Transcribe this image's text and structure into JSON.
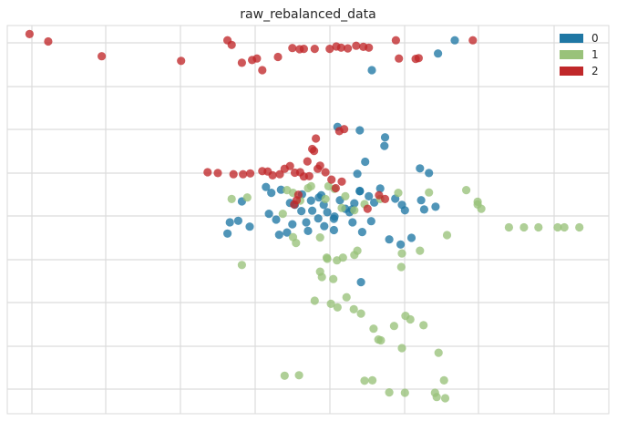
{
  "chart_data": {
    "type": "scatter",
    "title": "raw_rebalanced_data",
    "xlabel": "",
    "ylabel": "",
    "xlim": [
      0,
      100
    ],
    "ylim": [
      0,
      100
    ],
    "grid": true,
    "legend_position": "top-right",
    "series": [
      {
        "name": "0",
        "color": "#1f77a4",
        "points": [
          [
            74.4,
            96.2
          ],
          [
            71.6,
            92.8
          ],
          [
            60.6,
            88.5
          ],
          [
            54.9,
            73.9
          ],
          [
            58.6,
            73.0
          ],
          [
            62.8,
            71.2
          ],
          [
            62.7,
            69.0
          ],
          [
            70.1,
            62.0
          ],
          [
            68.6,
            63.2
          ],
          [
            59.5,
            64.9
          ],
          [
            58.2,
            61.8
          ],
          [
            52.2,
            56.3
          ],
          [
            49.0,
            56.5
          ],
          [
            48.9,
            52.2
          ],
          [
            47.0,
            54.3
          ],
          [
            43.0,
            58.4
          ],
          [
            45.5,
            57.7
          ],
          [
            39.0,
            54.7
          ],
          [
            38.4,
            49.7
          ],
          [
            40.3,
            48.2
          ],
          [
            36.6,
            46.4
          ],
          [
            37.0,
            49.3
          ],
          [
            43.9,
            56.9
          ],
          [
            43.5,
            51.5
          ],
          [
            44.7,
            50.0
          ],
          [
            47.4,
            48.8
          ],
          [
            47.8,
            53.8
          ],
          [
            50.5,
            54.9
          ],
          [
            50.7,
            52.3
          ],
          [
            51.8,
            55.7
          ],
          [
            52.6,
            53.8
          ],
          [
            53.2,
            51.9
          ],
          [
            54.4,
            50.8
          ],
          [
            55.3,
            55.0
          ],
          [
            56.2,
            52.8
          ],
          [
            57.7,
            54.2
          ],
          [
            58.6,
            57.3
          ],
          [
            60.1,
            56.0
          ],
          [
            61.0,
            54.4
          ],
          [
            62.0,
            58.0
          ],
          [
            64.5,
            55.4
          ],
          [
            65.6,
            53.8
          ],
          [
            58.6,
            57.4
          ],
          [
            56.9,
            51.9
          ],
          [
            54.3,
            50.2
          ],
          [
            52.7,
            48.3
          ],
          [
            51.7,
            50.3
          ],
          [
            49.7,
            49.3
          ],
          [
            46.5,
            46.7
          ],
          [
            45.2,
            46.1
          ],
          [
            50.0,
            47.1
          ],
          [
            57.4,
            49.3
          ],
          [
            59.0,
            46.8
          ],
          [
            63.5,
            44.9
          ],
          [
            65.4,
            43.6
          ],
          [
            67.2,
            45.3
          ],
          [
            69.3,
            52.6
          ],
          [
            71.2,
            53.3
          ],
          [
            58.8,
            33.9
          ],
          [
            54.3,
            47.3
          ],
          [
            60.5,
            49.6
          ],
          [
            66.1,
            52.4
          ],
          [
            68.8,
            55.0
          ],
          [
            57.3,
            52.6
          ]
        ]
      },
      {
        "name": "1",
        "color": "#99c27a",
        "points": [
          [
            62.0,
            55.3
          ],
          [
            65.0,
            56.9
          ],
          [
            70.1,
            57.0
          ],
          [
            76.3,
            57.6
          ],
          [
            78.2,
            54.6
          ],
          [
            73.1,
            46.0
          ],
          [
            57.7,
            52.4
          ],
          [
            59.4,
            54.0
          ],
          [
            52.9,
            55.3
          ],
          [
            50.0,
            58.1
          ],
          [
            47.5,
            56.9
          ],
          [
            46.5,
            57.6
          ],
          [
            50.5,
            58.6
          ],
          [
            54.4,
            57.9
          ],
          [
            56.2,
            56.0
          ],
          [
            55.6,
            53.0
          ],
          [
            53.4,
            58.6
          ],
          [
            48.7,
            54.9
          ],
          [
            39.9,
            55.7
          ],
          [
            37.3,
            55.3
          ],
          [
            45.8,
            51.5
          ],
          [
            47.5,
            45.5
          ],
          [
            48.0,
            44.0
          ],
          [
            52.0,
            45.4
          ],
          [
            53.1,
            40.2
          ],
          [
            53.2,
            39.9
          ],
          [
            54.8,
            39.5
          ],
          [
            55.8,
            40.2
          ],
          [
            57.7,
            40.9
          ],
          [
            52.0,
            36.6
          ],
          [
            56.4,
            30.0
          ],
          [
            65.6,
            41.3
          ],
          [
            65.5,
            37.8
          ],
          [
            58.2,
            42.0
          ],
          [
            68.6,
            42.0
          ],
          [
            39.0,
            38.3
          ],
          [
            51.1,
            29.1
          ],
          [
            53.8,
            28.3
          ],
          [
            54.9,
            27.4
          ],
          [
            57.6,
            26.9
          ],
          [
            58.8,
            25.8
          ],
          [
            60.9,
            21.9
          ],
          [
            61.7,
            19.1
          ],
          [
            62.1,
            18.9
          ],
          [
            64.3,
            22.6
          ],
          [
            66.2,
            25.2
          ],
          [
            67.0,
            24.3
          ],
          [
            69.2,
            22.8
          ],
          [
            71.7,
            15.7
          ],
          [
            65.6,
            16.9
          ],
          [
            83.4,
            48.0
          ],
          [
            85.9,
            48.0
          ],
          [
            88.3,
            48.0
          ],
          [
            91.5,
            48.0
          ],
          [
            92.6,
            48.0
          ],
          [
            95.1,
            48.0
          ],
          [
            78.2,
            53.9
          ],
          [
            78.8,
            52.8
          ],
          [
            48.5,
            9.9
          ],
          [
            46.1,
            9.8
          ],
          [
            71.4,
            4.3
          ],
          [
            72.8,
            4.0
          ],
          [
            66.1,
            5.4
          ],
          [
            63.5,
            5.5
          ],
          [
            60.7,
            8.6
          ],
          [
            59.4,
            8.5
          ],
          [
            72.6,
            8.6
          ],
          [
            71.1,
            5.4
          ],
          [
            52.3,
            35.2
          ],
          [
            54.2,
            34.7
          ]
        ]
      },
      {
        "name": "2",
        "color": "#c0282a",
        "points": [
          [
            3.7,
            97.8
          ],
          [
            6.8,
            95.9
          ],
          [
            15.7,
            92.1
          ],
          [
            28.9,
            90.9
          ],
          [
            36.6,
            96.2
          ],
          [
            37.3,
            95.0
          ],
          [
            39.0,
            90.4
          ],
          [
            40.7,
            91.1
          ],
          [
            41.5,
            91.5
          ],
          [
            42.4,
            88.5
          ],
          [
            45.0,
            91.9
          ],
          [
            47.4,
            94.2
          ],
          [
            48.6,
            93.9
          ],
          [
            49.3,
            94.0
          ],
          [
            51.1,
            94.0
          ],
          [
            53.6,
            94.0
          ],
          [
            54.7,
            94.6
          ],
          [
            55.5,
            94.3
          ],
          [
            56.6,
            94.1
          ],
          [
            58.0,
            94.8
          ],
          [
            59.2,
            94.5
          ],
          [
            60.1,
            94.3
          ],
          [
            64.6,
            96.2
          ],
          [
            65.1,
            91.5
          ],
          [
            67.9,
            91.4
          ],
          [
            68.4,
            91.6
          ],
          [
            77.4,
            96.2
          ],
          [
            33.3,
            62.2
          ],
          [
            35.0,
            62.0
          ],
          [
            37.6,
            61.7
          ],
          [
            39.2,
            61.7
          ],
          [
            40.4,
            61.9
          ],
          [
            42.4,
            62.5
          ],
          [
            43.3,
            62.4
          ],
          [
            44.1,
            61.4
          ],
          [
            45.3,
            61.7
          ],
          [
            46.1,
            63.1
          ],
          [
            47.0,
            63.8
          ],
          [
            47.8,
            62.1
          ],
          [
            48.7,
            62.2
          ],
          [
            49.3,
            61.1
          ],
          [
            49.9,
            65.0
          ],
          [
            51.0,
            67.7
          ],
          [
            52.0,
            63.9
          ],
          [
            52.9,
            62.2
          ],
          [
            53.9,
            60.3
          ],
          [
            54.6,
            58.1
          ],
          [
            55.6,
            59.8
          ],
          [
            56.0,
            73.3
          ],
          [
            51.3,
            70.9
          ],
          [
            50.7,
            68.2
          ],
          [
            48.4,
            56.4
          ],
          [
            48.1,
            55.0
          ],
          [
            47.7,
            53.9
          ],
          [
            59.9,
            52.8
          ],
          [
            61.8,
            56.3
          ],
          [
            62.8,
            55.3
          ],
          [
            55.2,
            72.8
          ],
          [
            51.6,
            63.1
          ],
          [
            50.2,
            61.2
          ]
        ]
      }
    ]
  }
}
